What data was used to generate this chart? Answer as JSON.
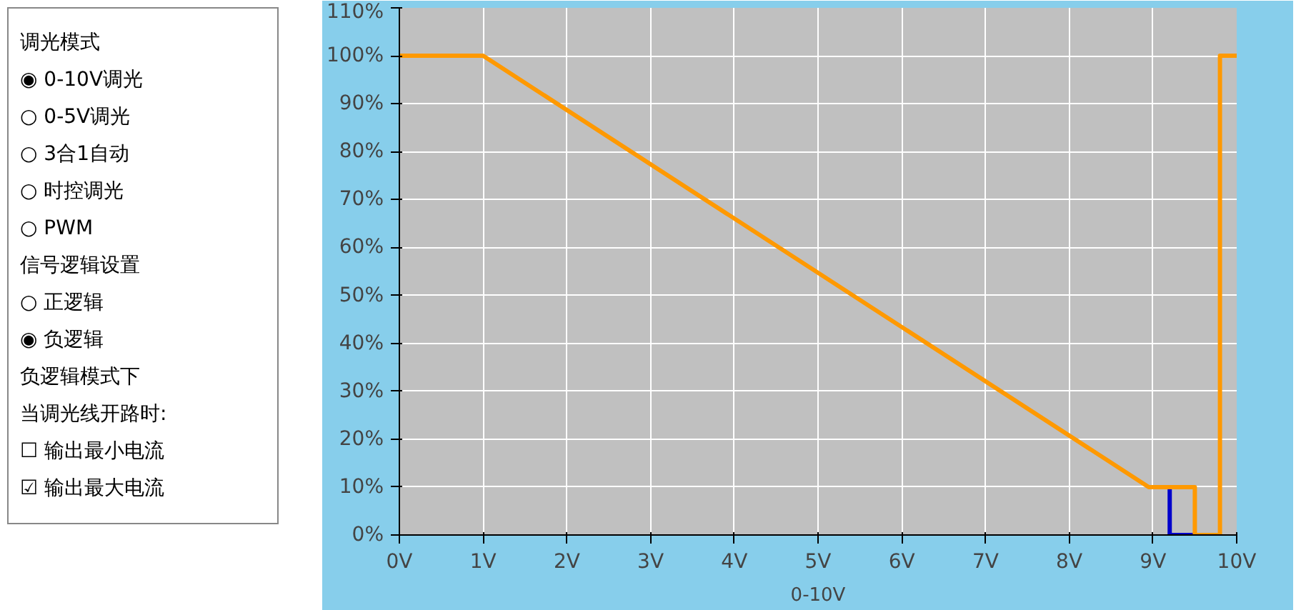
{
  "chart_data": [
    {
      "type": "other",
      "annotations": [
        "调光模式",
        "◉ 0-10V调光",
        "○ 0-5V调光",
        "○ 3合1自动",
        "○ 时控调光",
        "○ PWM",
        "信号逻辑设置",
        "○ 正逻辑",
        "◉ 负逻辑",
        "负逻辑模式下",
        "当调光线开路时:",
        "☐ 输出最小电流",
        "☑ 输出最大电流"
      ]
    },
    {
      "type": "line",
      "xlabel": "0-10V",
      "xlim": [
        0,
        10
      ],
      "ylim": [
        0,
        110
      ],
      "xticks": [
        {
          "value": 0,
          "label": "0V"
        },
        {
          "value": 1,
          "label": "1V"
        },
        {
          "value": 2,
          "label": "2V"
        },
        {
          "value": 3,
          "label": "3V"
        },
        {
          "value": 4,
          "label": "4V"
        },
        {
          "value": 5,
          "label": "5V"
        },
        {
          "value": 6,
          "label": "6V"
        },
        {
          "value": 7,
          "label": "7V"
        },
        {
          "value": 8,
          "label": "8V"
        },
        {
          "value": 9,
          "label": "9V"
        },
        {
          "value": 10,
          "label": "10V"
        }
      ],
      "yticks": [
        {
          "value": 0,
          "label": "0%"
        },
        {
          "value": 10,
          "label": "10%"
        },
        {
          "value": 20,
          "label": "20%"
        },
        {
          "value": 30,
          "label": "30%"
        },
        {
          "value": 40,
          "label": "40%"
        },
        {
          "value": 50,
          "label": "50%"
        },
        {
          "value": 60,
          "label": "60%"
        },
        {
          "value": 70,
          "label": "70%"
        },
        {
          "value": 80,
          "label": "80%"
        },
        {
          "value": 90,
          "label": "90%"
        },
        {
          "value": 100,
          "label": "100%"
        },
        {
          "value": 110,
          "label": "110%"
        }
      ],
      "grid": true,
      "line_style": "solid",
      "series": [
        {
          "color": "#0000cc",
          "x": [
            9.2,
            9.2,
            9.5
          ],
          "values": [
            10,
            0,
            0
          ]
        },
        {
          "color": "#ff9900",
          "x": [
            0,
            1,
            8.95,
            9.5,
            9.5,
            9.8,
            9.8,
            10
          ],
          "values": [
            100,
            100,
            10,
            10,
            0,
            0,
            100,
            100
          ]
        }
      ]
    }
  ]
}
